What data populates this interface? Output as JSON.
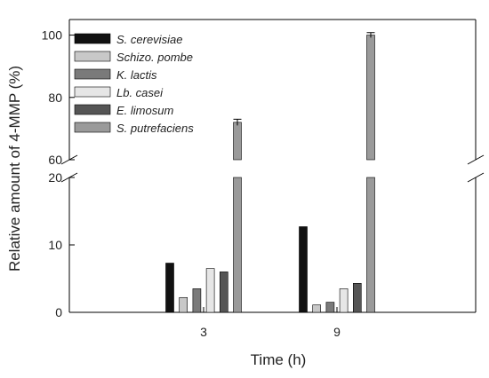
{
  "chart_data": {
    "type": "bar",
    "xlabel": "Time (h)",
    "ylabel": "Relative amount of 4-MMP (%)",
    "categories": [
      "3",
      "9"
    ],
    "y_axis_break": [
      20,
      60
    ],
    "ylim": [
      0,
      105
    ],
    "y_ticks_lower": [
      0,
      10,
      20
    ],
    "y_ticks_upper": [
      60,
      80,
      100
    ],
    "legend_position": "top-left",
    "series": [
      {
        "name": "S. cerevisiae",
        "color": "#111111",
        "values": [
          7.3,
          12.7
        ]
      },
      {
        "name": "Schizo. pombe",
        "color": "#c8c8c8",
        "values": [
          2.2,
          1.1
        ]
      },
      {
        "name": "K. lactis",
        "color": "#7a7a7a",
        "values": [
          3.5,
          1.5
        ]
      },
      {
        "name": "Lb. casei",
        "color": "#e6e6e6",
        "values": [
          6.5,
          3.5
        ]
      },
      {
        "name": "E. limosum",
        "color": "#555555",
        "values": [
          6.0,
          4.3
        ]
      },
      {
        "name": "S. putrefaciens",
        "color": "#9a9a9a",
        "values": [
          72,
          100
        ],
        "errors": [
          1.0,
          0.8
        ]
      }
    ]
  }
}
